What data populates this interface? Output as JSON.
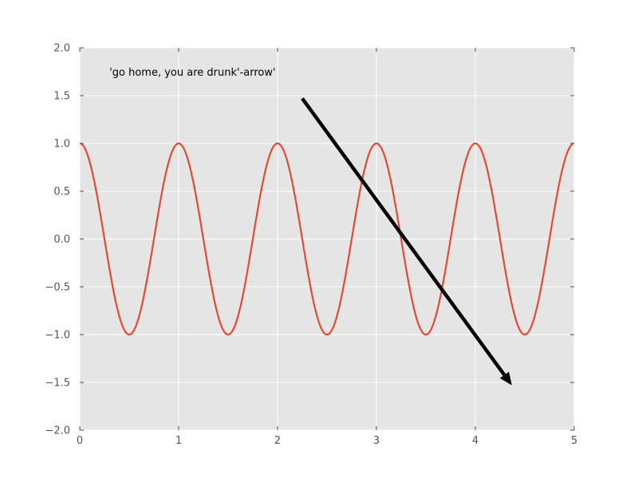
{
  "chart_data": {
    "type": "line",
    "title": "",
    "xlabel": "",
    "ylabel": "",
    "xlim": [
      0,
      5
    ],
    "ylim": [
      -2.0,
      2.0
    ],
    "grid": true,
    "x_ticks": [
      0,
      1,
      2,
      3,
      4,
      5
    ],
    "x_tick_labels": [
      "0",
      "1",
      "2",
      "3",
      "4",
      "5"
    ],
    "y_ticks": [
      -2.0,
      -1.5,
      -1.0,
      -0.5,
      0.0,
      0.5,
      1.0,
      1.5,
      2.0
    ],
    "y_tick_labels": [
      "−2.0",
      "−1.5",
      "−1.0",
      "−0.5",
      "0.0",
      "0.5",
      "1.0",
      "1.5",
      "2.0"
    ],
    "series": [
      {
        "function": "cos(2*pi*x)",
        "x_range": [
          0,
          5
        ],
        "color": "#e24a33"
      }
    ],
    "annotations": [
      {
        "text": "'go home, you are drunk'-arrow'",
        "text_xy": [
          0.3,
          1.7
        ],
        "arrow_start": [
          2.25,
          1.47
        ],
        "arrow_end": [
          4.37,
          -1.53
        ],
        "color": "#000000"
      }
    ],
    "colors": {
      "plot_background": "#e5e5e5",
      "grid": "#ffffff",
      "tick_label": "#555555"
    }
  }
}
